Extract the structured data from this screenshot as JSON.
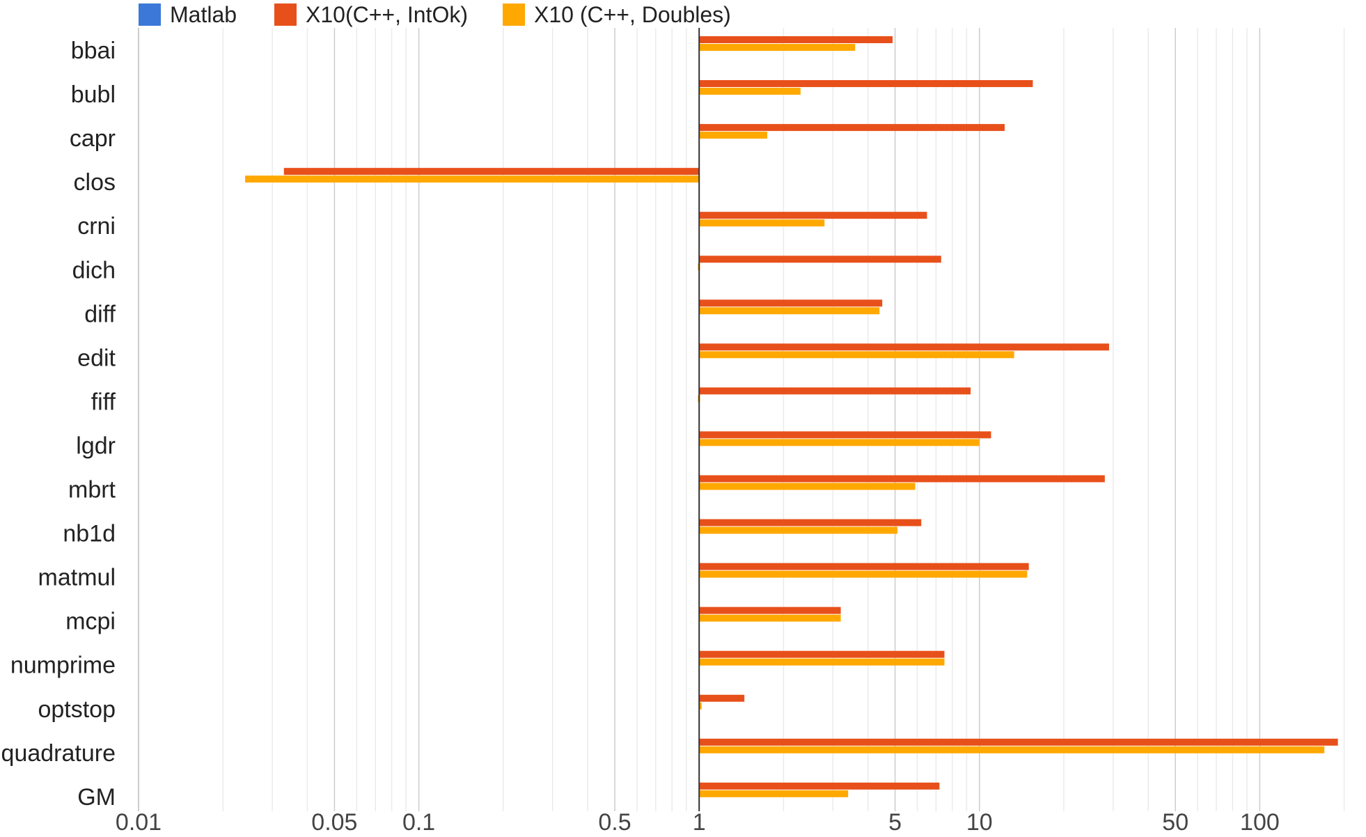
{
  "chart_data": {
    "type": "bar",
    "orientation": "horizontal",
    "x_scale": "log",
    "baseline": 1,
    "xlim": [
      0.01,
      200
    ],
    "grid": true,
    "legend_position": "top",
    "x_ticks": [
      {
        "value": 0.01,
        "label": "0.01"
      },
      {
        "value": 0.05,
        "label": "0.05"
      },
      {
        "value": 0.1,
        "label": "0.1"
      },
      {
        "value": 0.5,
        "label": "0.5"
      },
      {
        "value": 1,
        "label": "1"
      },
      {
        "value": 5,
        "label": "5"
      },
      {
        "value": 10,
        "label": "10"
      },
      {
        "value": 50,
        "label": "50"
      },
      {
        "value": 100,
        "label": "100"
      }
    ],
    "categories": [
      "bbai",
      "bubl",
      "capr",
      "clos",
      "crni",
      "dich",
      "diff",
      "edit",
      "fiff",
      "lgdr",
      "mbrt",
      "nb1d",
      "matmul",
      "mcpi",
      "numprime",
      "optstop",
      "quadrature",
      "GM"
    ],
    "series": [
      {
        "name": "Matlab",
        "color": "#3C78D8",
        "values": [
          1,
          1,
          1,
          1,
          1,
          1,
          1,
          1,
          1,
          1,
          1,
          1,
          1,
          1,
          1,
          1,
          1,
          1
        ]
      },
      {
        "name": "X10(C++, IntOk)",
        "color": "#E8501B",
        "values": [
          4.9,
          15.5,
          12.3,
          0.033,
          6.5,
          7.3,
          4.5,
          29.0,
          9.3,
          11.0,
          28.0,
          6.2,
          15.0,
          3.2,
          7.5,
          1.45,
          190,
          7.2
        ]
      },
      {
        "name": "X10 (C++, Doubles)",
        "color": "#FFA800",
        "values": [
          3.6,
          2.3,
          1.75,
          0.024,
          2.8,
          0.99,
          4.4,
          13.3,
          0.99,
          10.0,
          5.9,
          5.1,
          14.8,
          3.2,
          7.5,
          1.02,
          170,
          3.4
        ]
      }
    ]
  }
}
